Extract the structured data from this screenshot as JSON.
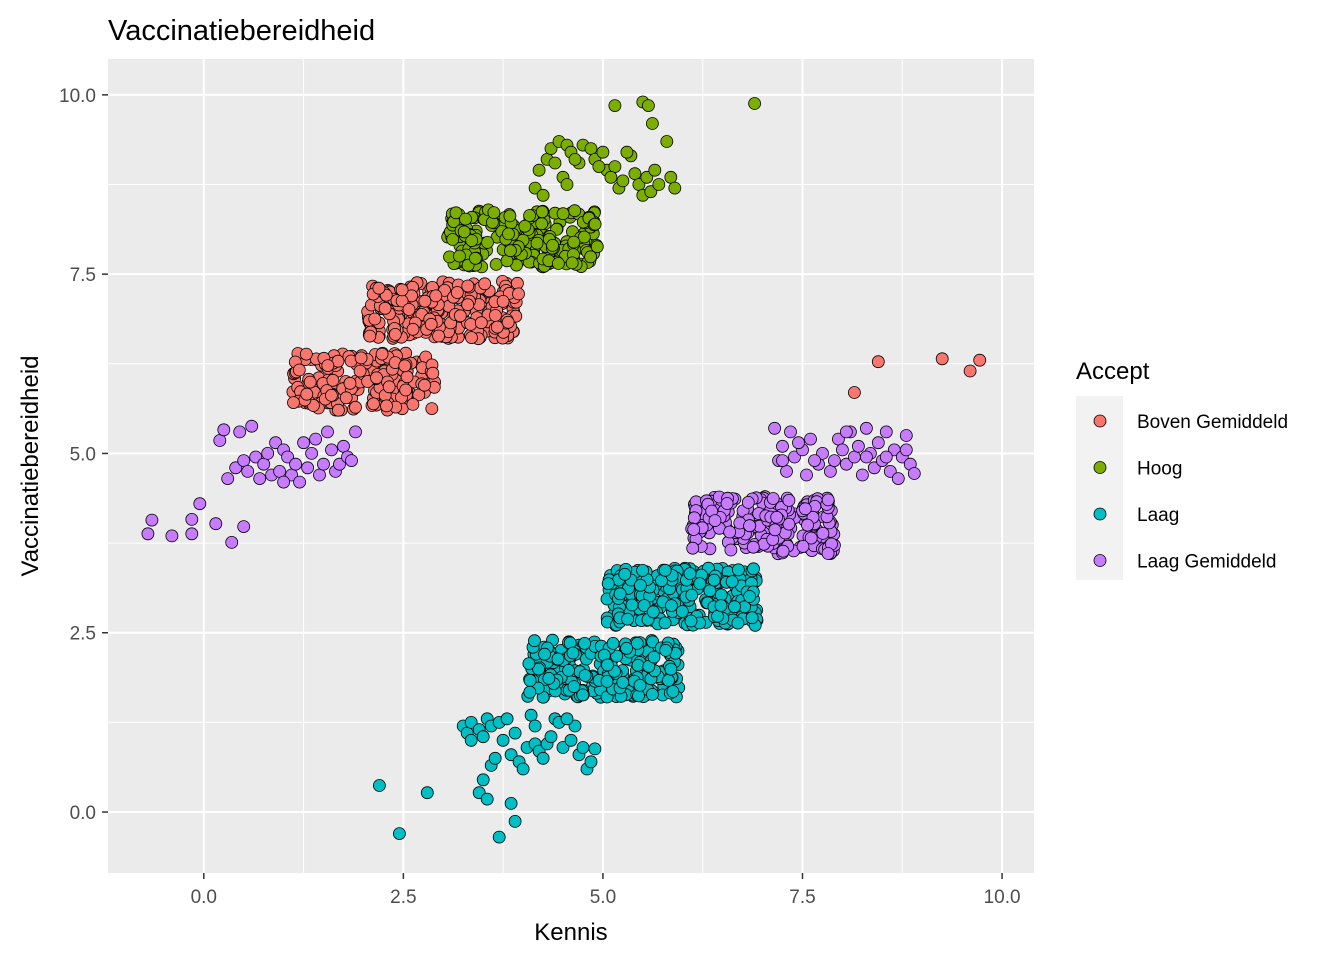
{
  "chart_data": {
    "type": "scatter",
    "title": "Vaccinatiebereidheid",
    "xlabel": "Kennis",
    "ylabel": "Vaccinatiebereidheid",
    "xlim": [
      -1.2,
      10.4
    ],
    "ylim": [
      -0.85,
      10.5
    ],
    "x_ticks": [
      0,
      2.5,
      5,
      7.5,
      10
    ],
    "x_tick_labels": [
      "0.0",
      "2.5",
      "5.0",
      "7.5",
      "10.0"
    ],
    "y_ticks": [
      0,
      2.5,
      5,
      7.5,
      10
    ],
    "y_tick_labels": [
      "0.0",
      "2.5",
      "5.0",
      "7.5",
      "10.0"
    ],
    "grid": true,
    "legend": {
      "title": "Accept",
      "position": "right"
    },
    "series": [
      {
        "name": "Boven Gemiddeld",
        "color": "#F8766D",
        "clusters": [
          {
            "x": [
              1.1,
              2.9
            ],
            "y": [
              5.6,
              6.4
            ],
            "n": 190
          },
          {
            "x": [
              2.05,
              3.95
            ],
            "y": [
              6.6,
              7.4
            ],
            "n": 260
          }
        ],
        "points": [
          [
            8.15,
            5.85
          ],
          [
            8.45,
            6.28
          ],
          [
            9.25,
            6.32
          ],
          [
            9.6,
            6.15
          ],
          [
            9.72,
            6.3
          ]
        ]
      },
      {
        "name": "Hoog",
        "color": "#7CAE00",
        "clusters": [
          {
            "x": [
              3.05,
              4.95
            ],
            "y": [
              7.6,
              8.4
            ],
            "n": 230
          }
        ],
        "points": [
          [
            5.15,
            9.85
          ],
          [
            5.5,
            9.9
          ],
          [
            5.57,
            9.85
          ],
          [
            5.62,
            9.6
          ],
          [
            5.8,
            9.35
          ],
          [
            6.9,
            9.88
          ],
          [
            4.15,
            8.7
          ],
          [
            4.2,
            8.95
          ],
          [
            4.3,
            9.1
          ],
          [
            4.35,
            9.25
          ],
          [
            4.45,
            9.35
          ],
          [
            4.55,
            9.3
          ],
          [
            4.6,
            9.2
          ],
          [
            4.7,
            9.05
          ],
          [
            4.75,
            9.3
          ],
          [
            4.85,
            9.25
          ],
          [
            4.9,
            9.1
          ],
          [
            5.0,
            9.2
          ],
          [
            5.05,
            8.95
          ],
          [
            5.15,
            9.0
          ],
          [
            5.2,
            8.7
          ],
          [
            5.25,
            8.8
          ],
          [
            5.35,
            9.15
          ],
          [
            5.4,
            8.9
          ],
          [
            5.45,
            8.75
          ],
          [
            5.5,
            8.6
          ],
          [
            5.55,
            8.85
          ],
          [
            5.6,
            8.65
          ],
          [
            5.7,
            8.75
          ],
          [
            5.85,
            8.85
          ],
          [
            5.9,
            8.7
          ],
          [
            4.5,
            8.85
          ],
          [
            4.55,
            8.75
          ],
          [
            4.25,
            8.6
          ],
          [
            4.65,
            9.1
          ],
          [
            5.3,
            9.2
          ],
          [
            4.95,
            9.0
          ],
          [
            4.4,
            9.05
          ],
          [
            5.1,
            8.85
          ],
          [
            5.65,
            8.95
          ]
        ]
      },
      {
        "name": "Laag",
        "color": "#00BFC4",
        "clusters": [
          {
            "x": [
              4.05,
              5.95
            ],
            "y": [
              1.6,
              2.4
            ],
            "n": 240
          },
          {
            "x": [
              5.05,
              6.95
            ],
            "y": [
              2.6,
              3.4
            ],
            "n": 270
          }
        ],
        "points": [
          [
            2.2,
            0.37
          ],
          [
            2.45,
            -0.3
          ],
          [
            2.8,
            0.27
          ],
          [
            3.45,
            0.27
          ],
          [
            3.55,
            0.18
          ],
          [
            3.7,
            -0.35
          ],
          [
            3.85,
            0.12
          ],
          [
            3.9,
            -0.13
          ],
          [
            3.5,
            0.45
          ],
          [
            3.6,
            0.65
          ],
          [
            3.25,
            1.2
          ],
          [
            3.3,
            1.1
          ],
          [
            3.35,
            1.25
          ],
          [
            3.45,
            1.15
          ],
          [
            3.5,
            1.05
          ],
          [
            3.55,
            1.3
          ],
          [
            3.6,
            1.2
          ],
          [
            3.7,
            1.25
          ],
          [
            3.75,
            1.0
          ],
          [
            3.8,
            1.3
          ],
          [
            3.85,
            0.8
          ],
          [
            3.9,
            1.1
          ],
          [
            3.95,
            0.7
          ],
          [
            4.05,
            0.9
          ],
          [
            4.1,
            1.35
          ],
          [
            4.15,
            0.95
          ],
          [
            4.2,
            0.85
          ],
          [
            4.25,
            0.75
          ],
          [
            4.3,
            0.95
          ],
          [
            4.35,
            1.05
          ],
          [
            4.4,
            1.3
          ],
          [
            4.45,
            1.25
          ],
          [
            4.5,
            0.9
          ],
          [
            4.6,
            1.0
          ],
          [
            4.65,
            1.2
          ],
          [
            4.7,
            0.8
          ],
          [
            4.75,
            0.9
          ],
          [
            4.8,
            0.6
          ],
          [
            4.85,
            0.7
          ],
          [
            4.9,
            0.88
          ],
          [
            3.35,
            1.0
          ],
          [
            3.65,
            0.75
          ],
          [
            4.0,
            0.6
          ],
          [
            4.55,
            1.3
          ],
          [
            4.15,
            1.2
          ]
        ]
      },
      {
        "name": "Laag Gemiddeld",
        "color": "#C77CFF",
        "clusters": [
          {
            "x": [
              6.1,
              7.9
            ],
            "y": [
              3.6,
              4.4
            ],
            "n": 230
          }
        ],
        "points": [
          [
            -0.7,
            3.88
          ],
          [
            -0.65,
            4.07
          ],
          [
            -0.4,
            3.85
          ],
          [
            -0.15,
            3.88
          ],
          [
            -0.15,
            4.08
          ],
          [
            -0.05,
            4.3
          ],
          [
            0.15,
            4.02
          ],
          [
            0.35,
            3.76
          ],
          [
            0.5,
            3.98
          ],
          [
            0.2,
            5.18
          ],
          [
            0.25,
            5.33
          ],
          [
            0.3,
            4.65
          ],
          [
            0.4,
            4.8
          ],
          [
            0.45,
            5.3
          ],
          [
            0.5,
            4.9
          ],
          [
            0.55,
            4.75
          ],
          [
            0.6,
            5.38
          ],
          [
            0.65,
            4.95
          ],
          [
            0.7,
            4.65
          ],
          [
            0.75,
            4.85
          ],
          [
            0.8,
            5.0
          ],
          [
            0.85,
            4.7
          ],
          [
            0.9,
            5.15
          ],
          [
            0.95,
            4.75
          ],
          [
            1.0,
            5.05
          ],
          [
            1.05,
            4.95
          ],
          [
            1.1,
            4.7
          ],
          [
            1.15,
            4.85
          ],
          [
            1.2,
            4.6
          ],
          [
            1.25,
            5.15
          ],
          [
            1.3,
            4.8
          ],
          [
            1.35,
            5.0
          ],
          [
            1.4,
            5.2
          ],
          [
            1.45,
            4.7
          ],
          [
            1.5,
            4.85
          ],
          [
            1.55,
            5.3
          ],
          [
            1.6,
            5.05
          ],
          [
            1.65,
            4.75
          ],
          [
            1.7,
            4.85
          ],
          [
            1.75,
            5.1
          ],
          [
            1.8,
            4.95
          ],
          [
            1.9,
            5.3
          ],
          [
            1.85,
            4.9
          ],
          [
            1.0,
            4.6
          ],
          [
            7.15,
            5.35
          ],
          [
            7.2,
            4.9
          ],
          [
            7.25,
            5.1
          ],
          [
            7.3,
            4.75
          ],
          [
            7.35,
            5.3
          ],
          [
            7.4,
            4.95
          ],
          [
            7.5,
            5.05
          ],
          [
            7.55,
            4.7
          ],
          [
            7.6,
            5.2
          ],
          [
            7.7,
            4.85
          ],
          [
            7.75,
            5.0
          ],
          [
            7.85,
            4.75
          ],
          [
            7.95,
            5.2
          ],
          [
            8.0,
            5.05
          ],
          [
            8.05,
            4.85
          ],
          [
            8.1,
            5.3
          ],
          [
            8.15,
            4.95
          ],
          [
            8.2,
            5.1
          ],
          [
            8.25,
            4.7
          ],
          [
            8.3,
            5.35
          ],
          [
            8.35,
            5.0
          ],
          [
            8.4,
            4.8
          ],
          [
            8.45,
            5.15
          ],
          [
            8.5,
            4.9
          ],
          [
            8.55,
            5.3
          ],
          [
            8.6,
            4.75
          ],
          [
            8.65,
            5.05
          ],
          [
            8.7,
            4.65
          ],
          [
            8.75,
            4.95
          ],
          [
            8.8,
            5.25
          ],
          [
            8.85,
            4.85
          ],
          [
            8.9,
            4.72
          ],
          [
            7.25,
            4.9
          ],
          [
            7.45,
            5.15
          ],
          [
            7.9,
            4.9
          ],
          [
            8.55,
            4.95
          ],
          [
            8.05,
            5.3
          ],
          [
            7.65,
            4.9
          ],
          [
            8.3,
            4.95
          ],
          [
            8.8,
            5.05
          ]
        ]
      }
    ]
  }
}
